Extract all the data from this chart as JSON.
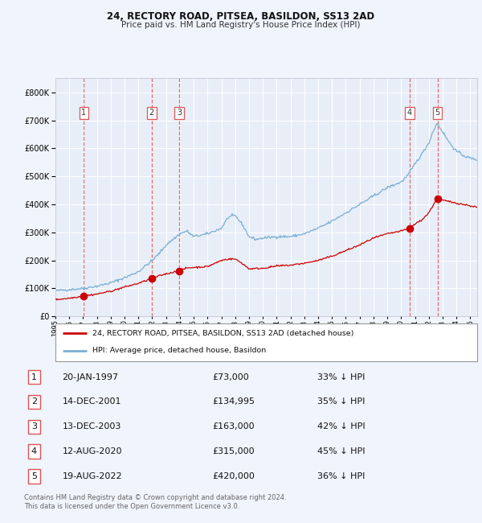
{
  "title1": "24, RECTORY ROAD, PITSEA, BASILDON, SS13 2AD",
  "title2": "Price paid vs. HM Land Registry's House Price Index (HPI)",
  "background_color": "#f0f4fc",
  "plot_bg_color": "#e8eef8",
  "grid_color": "#ffffff",
  "transactions": [
    {
      "num": 1,
      "date": "20-JAN-1997",
      "year": 1997.05,
      "price": 73000,
      "pct": "33%",
      "dir": "↓"
    },
    {
      "num": 2,
      "date": "14-DEC-2001",
      "year": 2001.96,
      "price": 134995,
      "pct": "35%",
      "dir": "↓"
    },
    {
      "num": 3,
      "date": "13-DEC-2003",
      "year": 2003.96,
      "price": 163000,
      "pct": "42%",
      "dir": "↓"
    },
    {
      "num": 4,
      "date": "12-AUG-2020",
      "year": 2020.62,
      "price": 315000,
      "pct": "45%",
      "dir": "↓"
    },
    {
      "num": 5,
      "date": "19-AUG-2022",
      "year": 2022.63,
      "price": 420000,
      "pct": "36%",
      "dir": "↓"
    }
  ],
  "legend_line1": "24, RECTORY ROAD, PITSEA, BASILDON, SS13 2AD (detached house)",
  "legend_line2": "HPI: Average price, detached house, Basildon",
  "footer1": "Contains HM Land Registry data © Crown copyright and database right 2024.",
  "footer2": "This data is licensed under the Open Government Licence v3.0.",
  "hpi_line_color": "#7aafd4",
  "price_line_color": "#cc0000",
  "marker_color": "#cc0000",
  "dashed_line_color": "#dd5555",
  "xmin": 1995.0,
  "xmax": 2025.5,
  "ymin": 0,
  "ymax": 850000,
  "hpi_anchors_x": [
    1995.0,
    1995.5,
    1996.0,
    1997.0,
    1998.0,
    1999.0,
    2000.0,
    2001.0,
    2002.0,
    2002.5,
    2003.0,
    2004.0,
    2004.5,
    2005.0,
    2006.0,
    2007.0,
    2007.5,
    2008.0,
    2008.5,
    2009.0,
    2009.5,
    2010.0,
    2011.0,
    2012.0,
    2013.0,
    2014.0,
    2015.0,
    2016.0,
    2017.0,
    2018.0,
    2019.0,
    2020.0,
    2020.5,
    2021.0,
    2021.5,
    2022.0,
    2022.3,
    2022.6,
    2023.0,
    2023.5,
    2024.0,
    2024.5,
    2025.0,
    2025.5
  ],
  "hpi_anchors_y": [
    92000,
    94000,
    96000,
    100000,
    108000,
    120000,
    138000,
    160000,
    200000,
    225000,
    255000,
    295000,
    305000,
    285000,
    295000,
    315000,
    355000,
    360000,
    330000,
    285000,
    275000,
    280000,
    285000,
    285000,
    295000,
    315000,
    340000,
    370000,
    400000,
    430000,
    460000,
    480000,
    505000,
    545000,
    580000,
    620000,
    660000,
    690000,
    660000,
    620000,
    590000,
    575000,
    565000,
    560000
  ],
  "price_anchors_x": [
    1995.0,
    1996.0,
    1997.05,
    1998.0,
    1999.0,
    2000.0,
    2001.0,
    2001.96,
    2002.5,
    2003.0,
    2003.96,
    2004.5,
    2005.0,
    2006.0,
    2007.0,
    2007.5,
    2008.0,
    2008.5,
    2009.0,
    2010.0,
    2011.0,
    2012.0,
    2013.0,
    2014.0,
    2015.0,
    2016.0,
    2017.0,
    2018.0,
    2019.0,
    2019.5,
    2020.0,
    2020.62,
    2021.0,
    2021.5,
    2022.0,
    2022.4,
    2022.63,
    2022.8,
    2023.0,
    2023.5,
    2024.0,
    2024.5,
    2025.0,
    2025.5
  ],
  "price_anchors_y": [
    60000,
    65000,
    73000,
    80000,
    90000,
    105000,
    118000,
    134995,
    145000,
    152000,
    163000,
    173000,
    175000,
    178000,
    200000,
    205000,
    205000,
    190000,
    170000,
    172000,
    180000,
    183000,
    190000,
    200000,
    215000,
    235000,
    255000,
    280000,
    295000,
    300000,
    305000,
    315000,
    330000,
    345000,
    370000,
    405000,
    420000,
    418000,
    415000,
    410000,
    405000,
    400000,
    395000,
    390000
  ]
}
